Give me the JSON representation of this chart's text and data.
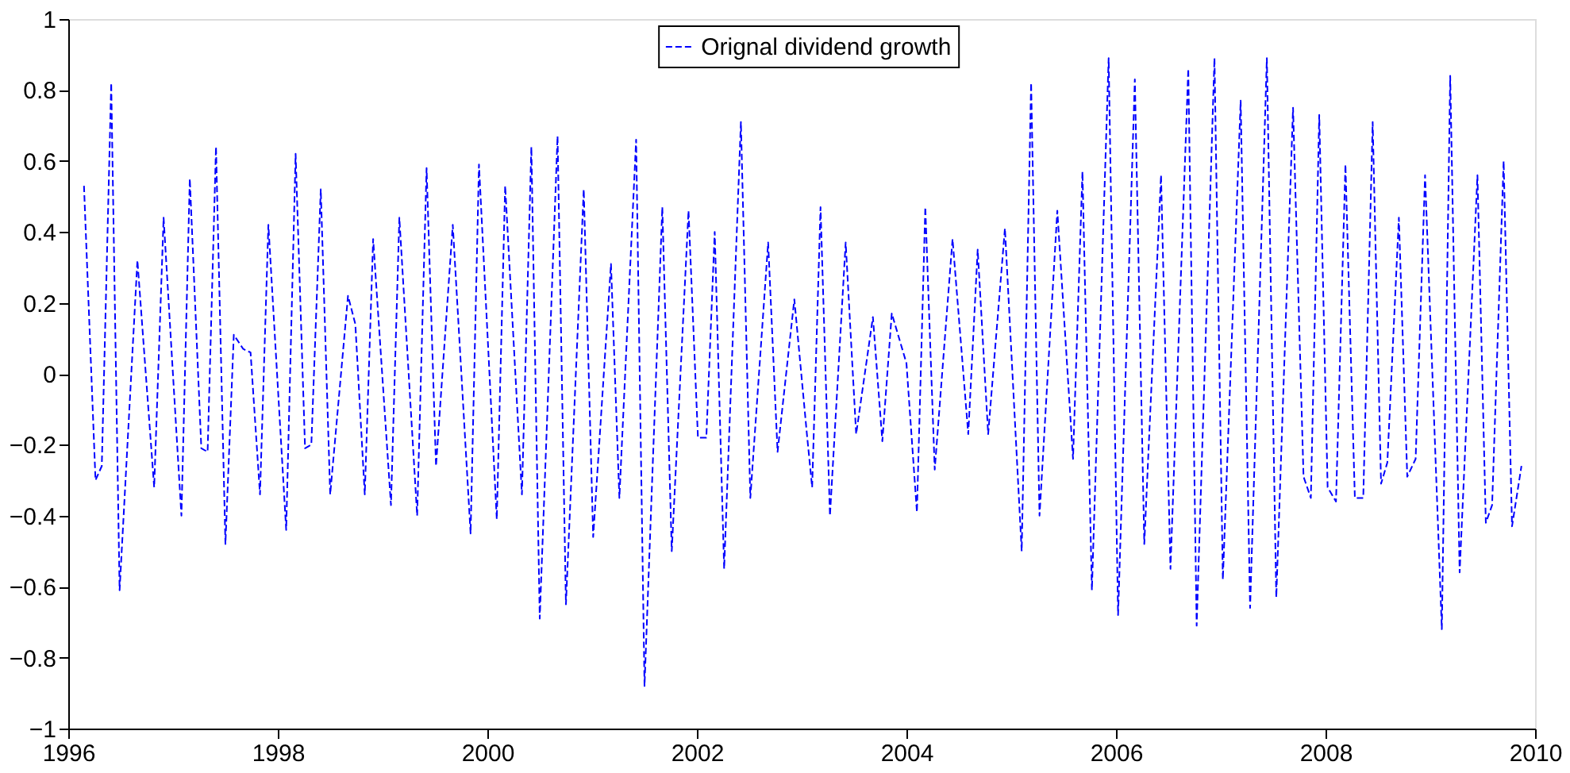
{
  "chart_data": {
    "type": "line",
    "xlim": [
      1996,
      2010
    ],
    "xticks": [
      1996,
      1998,
      2000,
      2002,
      2004,
      2006,
      2008,
      2010
    ],
    "ylim": [
      -1,
      1
    ],
    "yticks": [
      -1,
      -0.8,
      -0.6,
      -0.4,
      -0.2,
      0,
      0.2,
      0.4,
      0.6,
      0.8,
      1
    ],
    "grid": false,
    "legend": "top",
    "line_style": "dashed",
    "marker": "none",
    "series": [
      {
        "name": "Orignal dividend growth",
        "color": "#0000ff",
        "x": [
          1996.15,
          1996.26,
          1996.32,
          1996.41,
          1996.49,
          1996.66,
          1996.82,
          1996.91,
          1997.08,
          1997.16,
          1997.27,
          1997.33,
          1997.41,
          1997.5,
          1997.58,
          1997.67,
          1997.74,
          1997.83,
          1997.91,
          1998.08,
          1998.17,
          1998.26,
          1998.32,
          1998.41,
          1998.5,
          1998.67,
          1998.74,
          1998.83,
          1998.91,
          1999.08,
          1999.16,
          1999.33,
          1999.42,
          1999.51,
          1999.67,
          1999.84,
          1999.92,
          2000.09,
          2000.17,
          2000.33,
          2000.42,
          2000.5,
          2000.67,
          2000.75,
          2000.92,
          2001.01,
          2001.18,
          2001.26,
          2001.42,
          2001.5,
          2001.67,
          2001.76,
          2001.92,
          2002.01,
          2002.09,
          2002.17,
          2002.26,
          2002.42,
          2002.51,
          2002.68,
          2002.77,
          2002.93,
          2003.05,
          2003.1,
          2003.18,
          2003.27,
          2003.42,
          2003.52,
          2003.68,
          2003.77,
          2003.86,
          2004.0,
          2004.1,
          2004.18,
          2004.27,
          2004.44,
          2004.59,
          2004.68,
          2004.78,
          2004.94,
          2005.1,
          2005.19,
          2005.27,
          2005.44,
          2005.59,
          2005.68,
          2005.77,
          2005.93,
          2006.02,
          2006.18,
          2006.27,
          2006.43,
          2006.52,
          2006.69,
          2006.77,
          2006.94,
          2007.02,
          2007.19,
          2007.28,
          2007.44,
          2007.53,
          2007.69,
          2007.79,
          2007.86,
          2007.94,
          2008.02,
          2008.1,
          2008.19,
          2008.28,
          2008.36,
          2008.45,
          2008.53,
          2008.59,
          2008.7,
          2008.78,
          2008.86,
          2008.95,
          2009.11,
          2009.19,
          2009.28,
          2009.45,
          2009.53,
          2009.59,
          2009.7,
          2009.78,
          2009.87
        ],
        "values": [
          0.53,
          -0.3,
          -0.26,
          0.82,
          -0.61,
          0.32,
          -0.32,
          0.44,
          -0.4,
          0.55,
          -0.21,
          -0.22,
          0.64,
          -0.48,
          0.11,
          0.07,
          0.06,
          -0.34,
          0.42,
          -0.44,
          0.62,
          -0.21,
          -0.2,
          0.52,
          -0.34,
          0.22,
          0.14,
          -0.34,
          0.38,
          -0.37,
          0.44,
          -0.4,
          0.58,
          -0.26,
          0.42,
          -0.45,
          0.59,
          -0.41,
          0.53,
          -0.34,
          0.64,
          -0.69,
          0.67,
          -0.65,
          0.52,
          -0.46,
          0.31,
          -0.35,
          0.66,
          -0.88,
          0.47,
          -0.5,
          0.46,
          -0.18,
          -0.18,
          0.4,
          -0.55,
          0.71,
          -0.35,
          0.37,
          -0.22,
          0.21,
          -0.17,
          -0.32,
          0.47,
          -0.4,
          0.37,
          -0.17,
          0.16,
          -0.19,
          0.17,
          0.03,
          -0.39,
          0.47,
          -0.27,
          0.38,
          -0.17,
          0.35,
          -0.17,
          0.41,
          -0.5,
          0.82,
          -0.4,
          0.46,
          -0.24,
          0.57,
          -0.61,
          0.89,
          -0.68,
          0.83,
          -0.48,
          0.56,
          -0.55,
          0.86,
          -0.71,
          0.89,
          -0.58,
          0.77,
          -0.66,
          0.89,
          -0.63,
          0.75,
          -0.29,
          -0.35,
          0.73,
          -0.32,
          -0.36,
          0.59,
          -0.35,
          -0.35,
          0.71,
          -0.31,
          -0.25,
          0.44,
          -0.29,
          -0.24,
          0.56,
          -0.72,
          0.84,
          -0.56,
          0.56,
          -0.42,
          -0.37,
          0.6,
          -0.43,
          -0.26
        ]
      }
    ]
  }
}
